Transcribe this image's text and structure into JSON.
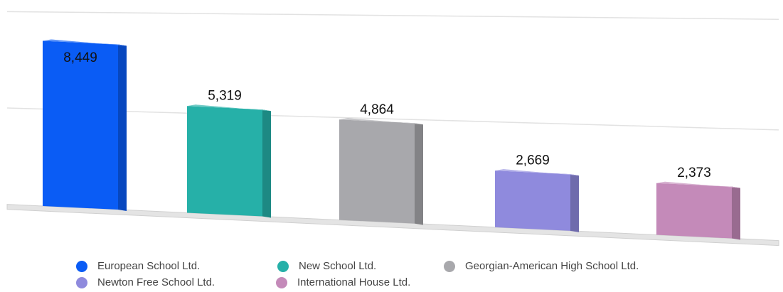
{
  "chart_data": {
    "type": "bar",
    "categories": [
      "European School Ltd.",
      "New School Ltd.",
      "Georgian-American High School Ltd.",
      "Newton Free School Ltd.",
      "International House Ltd."
    ],
    "values": [
      8449,
      5319,
      4864,
      2669,
      2373
    ],
    "value_labels": [
      "8,449",
      "5,319",
      "4,864",
      "2,669",
      "2,373"
    ],
    "colors": [
      "#0a5cf5",
      "#26b0a8",
      "#a8a8ac",
      "#8f8add",
      "#c48ab9"
    ],
    "ylim": [
      0,
      10000
    ],
    "yticks": [
      0,
      5000,
      10000
    ],
    "grid": true,
    "legend": "bottom"
  }
}
